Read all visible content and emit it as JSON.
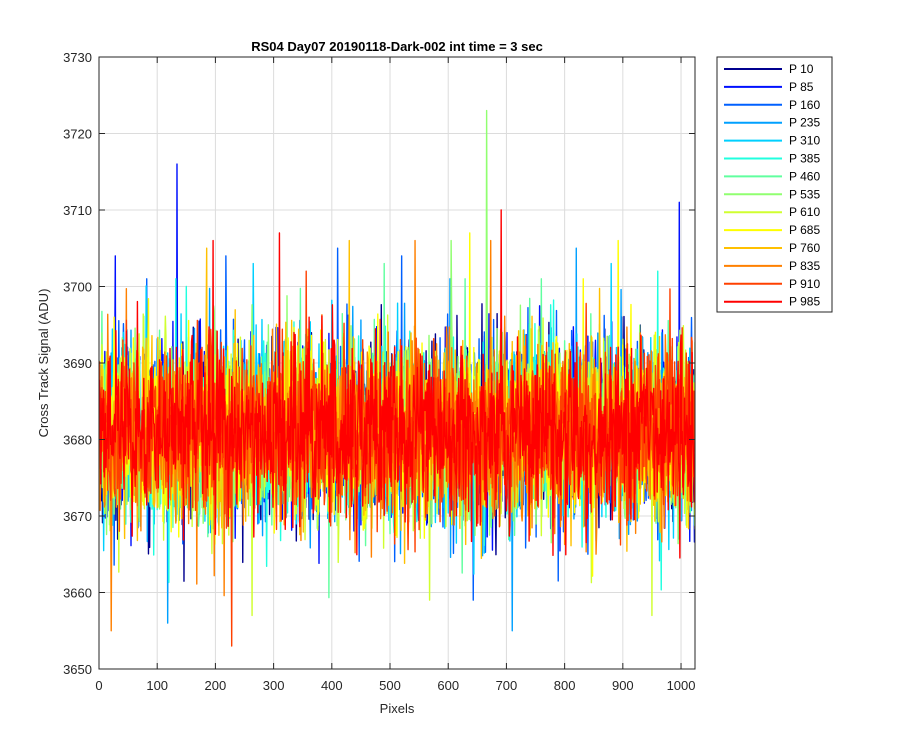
{
  "chart_data": {
    "type": "line",
    "title": "RS04 Day07 20190118-Dark-002 int time = 3 sec",
    "xlabel": "Pixels",
    "ylabel": "Cross Track Signal (ADU)",
    "xlim": [
      0,
      1024
    ],
    "ylim": [
      3650,
      3730
    ],
    "xticks": [
      "0",
      "100",
      "200",
      "300",
      "400",
      "500",
      "600",
      "700",
      "800",
      "900",
      "1000"
    ],
    "yticks": [
      "3650",
      "3660",
      "3670",
      "3680",
      "3690",
      "3700",
      "3710",
      "3720",
      "3730"
    ],
    "grid": true,
    "legend_position": "outside-top-right",
    "baseline": 3681,
    "noise_amplitude": 9,
    "series": [
      {
        "name": "P 10",
        "color": "#00008f",
        "spikes": []
      },
      {
        "name": "P 85",
        "color": "#0010ff",
        "spikes": [
          [
            134,
            3716
          ],
          [
            997,
            3711
          ],
          [
            28,
            3704
          ]
        ]
      },
      {
        "name": "P 160",
        "color": "#0060ff",
        "spikes": [
          [
            218,
            3704
          ],
          [
            410,
            3705
          ],
          [
            520,
            3704
          ]
        ]
      },
      {
        "name": "P 235",
        "color": "#00a0ff",
        "spikes": [
          [
            710,
            3655
          ],
          [
            820,
            3705
          ],
          [
            118,
            3656
          ]
        ]
      },
      {
        "name": "P 310",
        "color": "#00d0ff",
        "spikes": [
          [
            265,
            3703
          ],
          [
            880,
            3703
          ]
        ]
      },
      {
        "name": "P 385",
        "color": "#20ffdf",
        "spikes": [
          [
            150,
            3700
          ],
          [
            960,
            3702
          ]
        ]
      },
      {
        "name": "P 460",
        "color": "#60ff9f",
        "spikes": [
          [
            490,
            3703
          ],
          [
            760,
            3701
          ]
        ]
      },
      {
        "name": "P 535",
        "color": "#90ff70",
        "spikes": [
          [
            666,
            3723
          ],
          [
            605,
            3706
          ]
        ]
      },
      {
        "name": "P 610",
        "color": "#d0ff30",
        "spikes": [
          [
            263,
            3657
          ],
          [
            950,
            3657
          ]
        ]
      },
      {
        "name": "P 685",
        "color": "#ffff00",
        "spikes": [
          [
            637,
            3707
          ],
          [
            892,
            3706
          ]
        ]
      },
      {
        "name": "P 760",
        "color": "#ffc000",
        "spikes": [
          [
            185,
            3705
          ],
          [
            430,
            3706
          ]
        ]
      },
      {
        "name": "P 835",
        "color": "#ff8000",
        "spikes": [
          [
            21,
            3655
          ],
          [
            543,
            3706
          ],
          [
            673,
            3706
          ]
        ]
      },
      {
        "name": "P 910",
        "color": "#ff4000",
        "spikes": [
          [
            228,
            3653
          ],
          [
            356,
            3702
          ]
        ]
      },
      {
        "name": "P 985",
        "color": "#ff0000",
        "spikes": [
          [
            310,
            3707
          ],
          [
            691,
            3710
          ],
          [
            196,
            3706
          ]
        ]
      }
    ]
  }
}
